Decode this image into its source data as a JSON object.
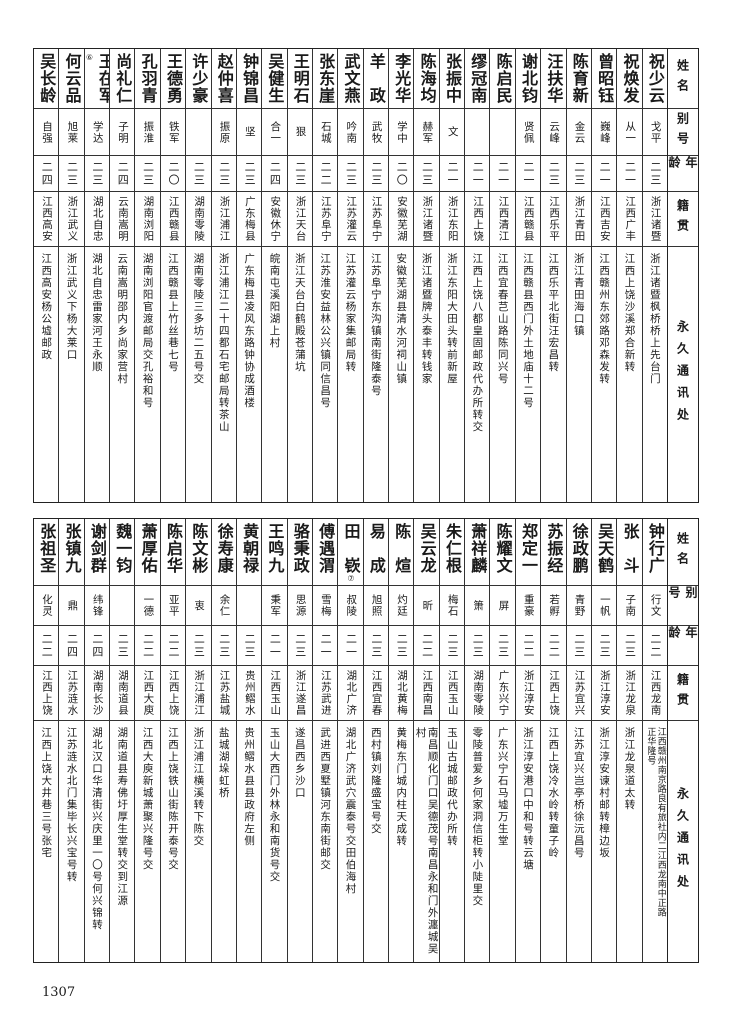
{
  "headers": {
    "name": "姓名",
    "alias": "别号",
    "age": "年龄",
    "native": "籍贯",
    "address": "永久通讯处"
  },
  "top_rows": [
    {
      "name": "祝少云",
      "alias": "戈平",
      "age": "二三",
      "native": "浙江诸暨",
      "address": "浙江诸暨枫桥桥上先台门"
    },
    {
      "name": "祝焕发",
      "alias": "从一",
      "age": "二一",
      "native": "江西广丰",
      "address": "江西上饶沙溪郑合新转"
    },
    {
      "name": "曾昭钰",
      "alias": "巍峰",
      "age": "二一",
      "native": "江西吉安",
      "address": "江西赣州东郊路邓森发转"
    },
    {
      "name": "陈育新",
      "alias": "金云",
      "age": "二三",
      "native": "浙江青田",
      "address": "浙江青田海口镇"
    },
    {
      "name": "汪扶华",
      "alias": "云峰",
      "age": "二三",
      "native": "江西乐平",
      "address": "江西乐平北街汪宏昌转"
    },
    {
      "name": "谢北钧",
      "alias": "贤佩",
      "age": "二一",
      "native": "江西赣县",
      "address": "江西赣县西门外土地庙十二号"
    },
    {
      "name": "陈启民",
      "alias": "",
      "age": "二一",
      "native": "江西清江",
      "address": "江西宜春芑山路陈同兴号"
    },
    {
      "name": "缪冠南",
      "alias": "",
      "age": "二一",
      "native": "江西上饶",
      "address": "江西上饶八都皇固邮政代办所转交"
    },
    {
      "name": "张振中",
      "alias": "文",
      "age": "二一",
      "native": "浙江东阳",
      "address": "浙江东阳大田头转前新屋"
    },
    {
      "name": "陈海均",
      "alias": "赫军",
      "age": "二三",
      "native": "浙江诸暨",
      "address": "浙江诸暨牌头泰丰转钱家"
    },
    {
      "name": "李光华",
      "alias": "学中",
      "age": "二〇",
      "native": "安徽芜湖",
      "address": "安徽芜湖县清水河祠山镇"
    },
    {
      "name": "羊　政",
      "alias": "武牧",
      "age": "二三",
      "native": "江苏阜宁",
      "address": "江苏阜宁东沟镇南街隆泰号"
    },
    {
      "name": "武文燕",
      "alias": "吟南",
      "age": "二三",
      "native": "江苏灌云",
      "address": "江苏灌云杨家集邮局转"
    },
    {
      "name": "张东崖",
      "alias": "石城",
      "age": "二二",
      "native": "江苏阜宁",
      "address": "江苏淮安益林公兴镇同信昌号"
    },
    {
      "name": "王明石",
      "alias": "狠",
      "age": "二三",
      "native": "浙江天台",
      "address": "浙江天台白鹤殿苍蒲坑"
    },
    {
      "name": "吴健生",
      "alias": "合一",
      "age": "二四",
      "native": "安徽休宁",
      "address": "皖南屯溪阳湖上村"
    },
    {
      "name": "钟锦昌",
      "alias": "坚",
      "age": "二三",
      "native": "广东梅县",
      "address": "广东梅县凌风东路钟协成酒楼"
    },
    {
      "name": "赵仲喜",
      "alias": "振原",
      "age": "二三",
      "native": "浙江浦江",
      "address": "浙江浦江二十四都石宅邮局转茶山"
    },
    {
      "name": "许少豪",
      "alias": "",
      "age": "二三",
      "native": "湖南零陵",
      "address": "湖南零陵三多坊二五号交"
    },
    {
      "name": "王德勇",
      "alias": "铁军",
      "age": "二〇",
      "native": "江西赣县",
      "address": "江西赣县上竹丝巷七号"
    },
    {
      "name": "孔羽青",
      "alias": "振淮",
      "age": "二三",
      "native": "湖南浏阳",
      "address": "湖南浏阳官渡邮局交孔裕和号"
    },
    {
      "name": "尚礼仁",
      "alias": "子明",
      "age": "二四",
      "native": "云南嵩明",
      "address": "云南嵩明邵内乡尚家营村"
    },
    {
      "name": "王在军",
      "note": "⑥",
      "alias": "学达",
      "age": "二三",
      "native": "湖北自忠",
      "address": "湖北自忠雷家河王永顺"
    },
    {
      "name": "何云品",
      "alias": "旭莱",
      "age": "二三",
      "native": "浙江武义",
      "address": "浙江武义下杨大莱口"
    },
    {
      "name": "吴长龄",
      "alias": "自强",
      "age": "二四",
      "native": "江西高安",
      "address": "江西高安杨公墟邮政"
    }
  ],
  "bottom_rows": [
    {
      "name": "钟行广",
      "alias": "行文",
      "age": "二二",
      "native": "江西龙南",
      "address": "江西赣州南京路良有旅社内二江西龙南中正路",
      "address2": "正华隆号"
    },
    {
      "name": "张　斗",
      "alias": "子南",
      "age": "二三",
      "native": "浙江龙泉",
      "address": "浙江龙泉道太转"
    },
    {
      "name": "吴天鹤",
      "alias": "一帆",
      "age": "二三",
      "native": "浙江淳安",
      "address": "浙江淳安谏村邮转樟边坂"
    },
    {
      "name": "徐政鹏",
      "alias": "青野",
      "age": "二三",
      "native": "江苏宜兴",
      "address": "江苏宜兴岂亭桥徐沅昌号"
    },
    {
      "name": "苏振经",
      "alias": "若孵",
      "age": "二二",
      "native": "江西上饶",
      "address": "江西上饶冷水岭转童子岭"
    },
    {
      "name": "郑定一",
      "alias": "重豪",
      "age": "二二",
      "native": "浙江淳安",
      "address": "浙江淳安港口中和号转云塘"
    },
    {
      "name": "陈耀文",
      "alias": "屏",
      "age": "二三",
      "native": "广东兴宁",
      "address": "广东兴宁石马墟万生堂"
    },
    {
      "name": "萧祥麟",
      "alias": "箫",
      "age": "二三",
      "native": "湖南零陵",
      "address": "零陵普爱乡何家洞信柜转小陡里交"
    },
    {
      "name": "朱仁根",
      "alias": "梅石",
      "age": "二三",
      "native": "江西玉山",
      "address": "玉山古城邮政代办所转"
    },
    {
      "name": "吴云龙",
      "alias": "昕",
      "age": "二二",
      "native": "江西南昌",
      "address": "南昌顺化门口吴德茂号南昌永和门外瀍城吴村"
    },
    {
      "name": "陈　煊",
      "alias": "灼廷",
      "age": "二三",
      "native": "湖北黄梅",
      "address": "黄梅东门城内柱天成转"
    },
    {
      "name": "易　成",
      "alias": "旭照",
      "age": "二三",
      "native": "江西宜春",
      "address": "西村镇刘隆盛宝号交"
    },
    {
      "name": "田　嵚",
      "note": "⑦",
      "alias": "叔陵",
      "age": "二一",
      "native": "湖北广济",
      "address": "湖北广济武穴震泰号交田伯海村"
    },
    {
      "name": "傅遇渭",
      "alias": "雪梅",
      "age": "二一",
      "native": "江苏武进",
      "address": "武进西夏墅镇河东南街邮交"
    },
    {
      "name": "骆秉政",
      "alias": "思源",
      "age": "二三",
      "native": "浙江遂昌",
      "address": "遂昌西乡沙口"
    },
    {
      "name": "王鸣九",
      "alias": "秉军",
      "age": "二一",
      "native": "江西玉山",
      "address": "玉山大西门外林永和南货号交"
    },
    {
      "name": "黄朝禄",
      "alias": "",
      "age": "二三",
      "native": "贵州鳛水",
      "address": "贵州鳛水县县政府左侧"
    },
    {
      "name": "徐寿康",
      "alias": "余仁",
      "age": "二三",
      "native": "江苏盐城",
      "address": "盐城湖垛虹桥"
    },
    {
      "name": "陈文彬",
      "alias": "衷",
      "age": "二三",
      "native": "浙江浦江",
      "address": "浙江浦江横溪转下陈交"
    },
    {
      "name": "陈启华",
      "alias": "亚平",
      "age": "二二",
      "native": "江西上饶",
      "address": "江西上饶铁山街陈开泰号交"
    },
    {
      "name": "萧厚佑",
      "alias": "一德",
      "age": "二二",
      "native": "江西大庾",
      "address": "江西大庾新城萧聚兴隆号交"
    },
    {
      "name": "魏一钧",
      "alias": "",
      "age": "二三",
      "native": "湖南道县",
      "address": "湖南道县寿佛圩厚生堂转交到江源"
    },
    {
      "name": "谢剑群",
      "alias": "纬锋",
      "age": "二四",
      "native": "湖南长沙",
      "address": "湖北汉口华清街兴庆里一〇号何兴锦转"
    },
    {
      "name": "张镇九",
      "alias": "鼎",
      "age": "二四",
      "native": "江苏涟水",
      "address": "江苏涟水北门集毕长兴宝号转"
    },
    {
      "name": "张祖圣",
      "alias": "化灵",
      "age": "二二",
      "native": "江西上饶",
      "address": "江西上饶大井巷三号张宅"
    }
  ],
  "page_number": "1307"
}
